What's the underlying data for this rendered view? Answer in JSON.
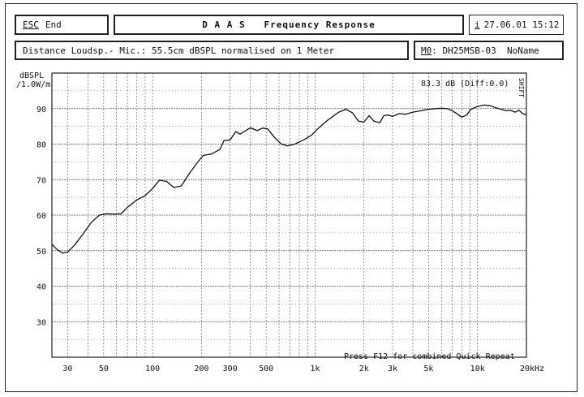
{
  "header": {
    "esc_key": "ESC",
    "esc_label": "End",
    "title": "D A A S   Frequency Response",
    "info_key": "i",
    "datetime": "27.06.01 15:12",
    "description": "Distance Loudsp.- Mic.: 55.5cm dBSPL normalised on 1 Meter",
    "model_key": "M0",
    "model": ": DH25MSB-03  NoName"
  },
  "footer_hint": "Press F12 for combined Quick Repeat",
  "readout": "83.3 dB (Diff:0.0)",
  "side_tag": "SHIFT",
  "colors": {
    "curve": "#111111",
    "grid": "#555555",
    "background": "#ffffff"
  },
  "chart_data": {
    "type": "line",
    "title": "Frequency Response",
    "ylabel": "dBSPL /1.0W/m",
    "ylabel_lines": [
      "dBSPL",
      "/1.0W/m"
    ],
    "xlabel": "",
    "x_scale": "log",
    "xlim": [
      24,
      20000
    ],
    "ylim": [
      20,
      100
    ],
    "grid": true,
    "y_ticks": [
      30,
      40,
      50,
      60,
      70,
      80,
      90
    ],
    "x_ticks": [
      {
        "v": 30,
        "label": "30"
      },
      {
        "v": 50,
        "label": "50"
      },
      {
        "v": 100,
        "label": "100"
      },
      {
        "v": 200,
        "label": "200"
      },
      {
        "v": 300,
        "label": "300"
      },
      {
        "v": 500,
        "label": "500"
      },
      {
        "v": 1000,
        "label": "1k"
      },
      {
        "v": 2000,
        "label": "2k"
      },
      {
        "v": 3000,
        "label": "3k"
      },
      {
        "v": 5000,
        "label": "5k"
      },
      {
        "v": 10000,
        "label": "10k"
      },
      {
        "v": 20000,
        "label": "20kHz"
      }
    ],
    "x_grid": [
      30,
      40,
      50,
      60,
      70,
      80,
      90,
      100,
      200,
      300,
      400,
      500,
      600,
      700,
      800,
      900,
      1000,
      2000,
      3000,
      4000,
      5000,
      6000,
      7000,
      8000,
      9000,
      10000,
      20000
    ],
    "series": [
      {
        "values": [
          [
            24,
            51.8
          ],
          [
            26,
            50.2
          ],
          [
            28,
            49.3
          ],
          [
            30,
            49.6
          ],
          [
            33,
            51.5
          ],
          [
            37,
            54.5
          ],
          [
            42,
            58.0
          ],
          [
            47,
            60.0
          ],
          [
            52,
            60.4
          ],
          [
            58,
            60.3
          ],
          [
            64,
            60.4
          ],
          [
            70,
            62.2
          ],
          [
            80,
            64.3
          ],
          [
            90,
            65.5
          ],
          [
            100,
            67.5
          ],
          [
            110,
            69.8
          ],
          [
            122,
            69.5
          ],
          [
            135,
            67.8
          ],
          [
            150,
            68.2
          ],
          [
            170,
            72.0
          ],
          [
            190,
            75.0
          ],
          [
            205,
            76.8
          ],
          [
            230,
            77.2
          ],
          [
            260,
            78.5
          ],
          [
            275,
            81.0
          ],
          [
            300,
            81.2
          ],
          [
            325,
            83.5
          ],
          [
            345,
            82.8
          ],
          [
            365,
            83.5
          ],
          [
            400,
            84.6
          ],
          [
            440,
            83.8
          ],
          [
            475,
            84.5
          ],
          [
            510,
            84.3
          ],
          [
            560,
            82.0
          ],
          [
            620,
            80.0
          ],
          [
            680,
            79.5
          ],
          [
            750,
            80.0
          ],
          [
            850,
            81.2
          ],
          [
            950,
            82.5
          ],
          [
            1050,
            84.5
          ],
          [
            1200,
            86.8
          ],
          [
            1400,
            89.0
          ],
          [
            1550,
            89.8
          ],
          [
            1700,
            88.8
          ],
          [
            1850,
            86.5
          ],
          [
            2000,
            86.2
          ],
          [
            2150,
            88.0
          ],
          [
            2300,
            86.5
          ],
          [
            2500,
            86.0
          ],
          [
            2650,
            88.0
          ],
          [
            2800,
            88.2
          ],
          [
            3000,
            87.8
          ],
          [
            3300,
            88.6
          ],
          [
            3600,
            88.4
          ],
          [
            4000,
            89.0
          ],
          [
            4500,
            89.4
          ],
          [
            5000,
            89.8
          ],
          [
            5500,
            90.0
          ],
          [
            6000,
            90.1
          ],
          [
            6500,
            90.0
          ],
          [
            7000,
            89.4
          ],
          [
            7500,
            88.5
          ],
          [
            8000,
            87.6
          ],
          [
            8600,
            88.2
          ],
          [
            9000,
            89.6
          ],
          [
            9500,
            90.2
          ],
          [
            10000,
            90.6
          ],
          [
            11000,
            91.0
          ],
          [
            12000,
            90.8
          ],
          [
            13000,
            90.2
          ],
          [
            14000,
            89.8
          ],
          [
            15000,
            89.4
          ],
          [
            16000,
            89.5
          ],
          [
            17000,
            89.0
          ],
          [
            18000,
            89.5
          ],
          [
            19000,
            88.6
          ],
          [
            20000,
            88.2
          ]
        ]
      }
    ]
  }
}
